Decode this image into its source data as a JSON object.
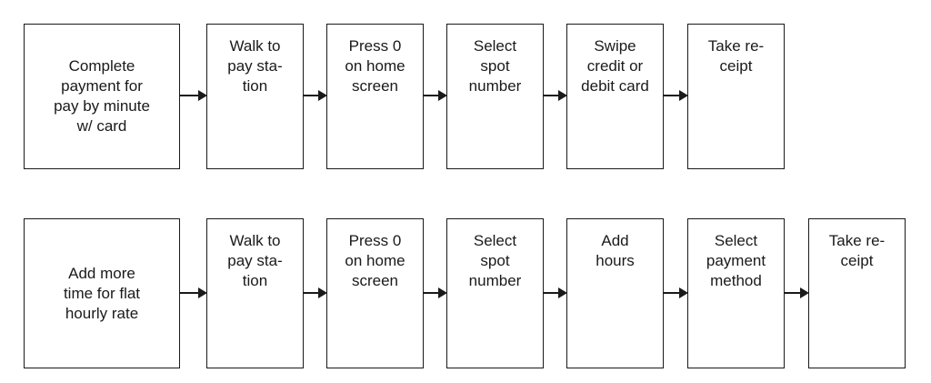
{
  "flow_1": {
    "start": "Complete\npayment for\npay by minute\nw/ card",
    "steps": [
      "Walk to\npay sta-\ntion",
      "Press 0\non home\nscreen",
      "Select\nspot\nnumber",
      "Swipe\ncredit or\ndebit card",
      "Take re-\nceipt"
    ]
  },
  "flow_2": {
    "start": "Add more\ntime for flat\nhourly rate",
    "steps": [
      "Walk to\npay sta-\ntion",
      "Press 0\non home\nscreen",
      "Select\nspot\nnumber",
      "Add\nhours",
      "Select\npayment\nmethod",
      "Take re-\nceipt"
    ]
  }
}
